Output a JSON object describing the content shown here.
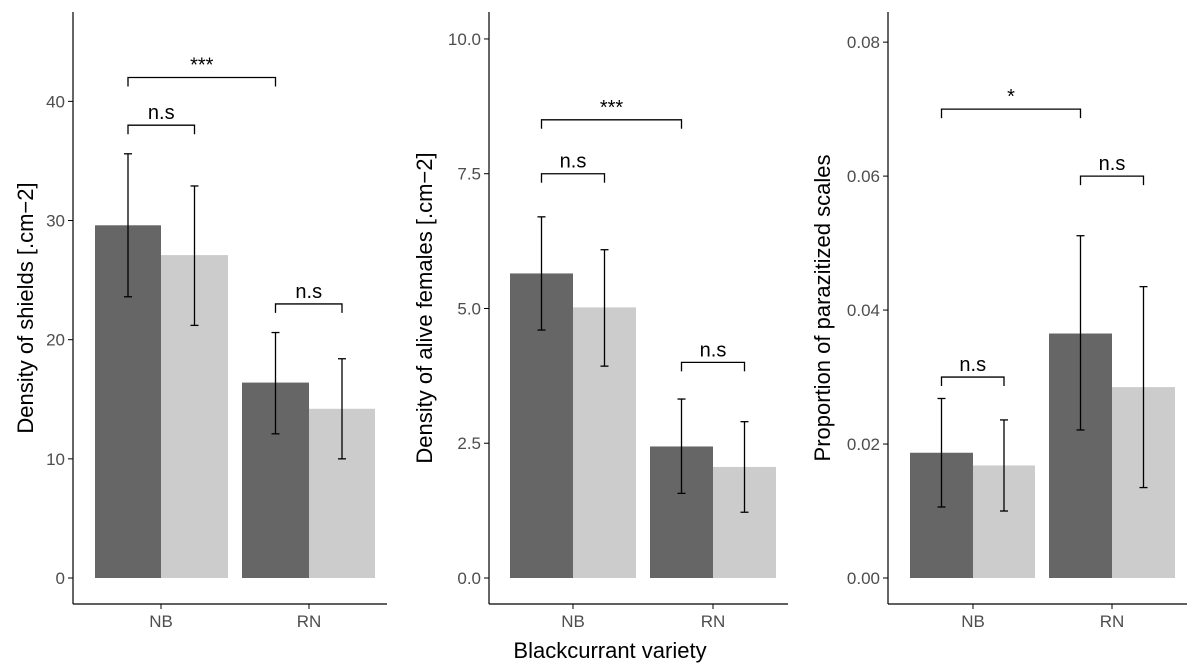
{
  "x_axis_title": "Blackcurrant variety",
  "colors": {
    "dark_bar": "#666666",
    "light_bar": "#cccccc",
    "axis": "#000000",
    "tick_text": "#4d4d4d"
  },
  "chart_data": [
    {
      "type": "bar",
      "ylabel": "Density of shields [.cm−2]",
      "ylim": [
        0,
        47.5
      ],
      "yticks": [
        0,
        10,
        20,
        30,
        40
      ],
      "ytick_labels": [
        "0",
        "10",
        "20",
        "30",
        "40"
      ],
      "categories": [
        "NB",
        "RN"
      ],
      "series": [
        {
          "values": [
            29.6,
            16.4
          ],
          "err_low": [
            23.6,
            12.1
          ],
          "err_high": [
            35.6,
            20.6
          ]
        },
        {
          "values": [
            27.1,
            14.2
          ],
          "err_low": [
            21.2,
            10.0
          ],
          "err_high": [
            32.9,
            18.4
          ]
        }
      ],
      "annotations": [
        {
          "label": "n.s",
          "from": "NB-1",
          "to": "NB-2",
          "level": 38.0
        },
        {
          "label": "n.s",
          "from": "RN-1",
          "to": "RN-2",
          "level": 23.0
        },
        {
          "label": "***",
          "from": "NB-1",
          "to": "RN-1",
          "level": 42.0
        }
      ]
    },
    {
      "type": "bar",
      "ylabel": "Density of alive females [.cm−2]",
      "ylim": [
        0,
        10.5
      ],
      "yticks": [
        0,
        2.5,
        5,
        7.5,
        10
      ],
      "ytick_labels": [
        "0.0",
        "2.5",
        "5.0",
        "7.5",
        "10.0"
      ],
      "categories": [
        "NB",
        "RN"
      ],
      "series": [
        {
          "values": [
            5.65,
            2.44
          ],
          "err_low": [
            4.6,
            1.57
          ],
          "err_high": [
            6.7,
            3.32
          ]
        },
        {
          "values": [
            5.02,
            2.06
          ],
          "err_low": [
            3.93,
            1.22
          ],
          "err_high": [
            6.09,
            2.9
          ]
        }
      ],
      "annotations": [
        {
          "label": "n.s",
          "from": "NB-1",
          "to": "NB-2",
          "level": 7.5
        },
        {
          "label": "n.s",
          "from": "RN-1",
          "to": "RN-2",
          "level": 4.0
        },
        {
          "label": "***",
          "from": "NB-1",
          "to": "RN-1",
          "level": 8.5
        }
      ]
    },
    {
      "type": "bar",
      "ylabel": "Proportion of parazitized scales",
      "ylim": [
        0,
        0.0845
      ],
      "yticks": [
        0,
        0.02,
        0.04,
        0.06,
        0.08
      ],
      "ytick_labels": [
        "0.00",
        "0.02",
        "0.04",
        "0.06",
        "0.08"
      ],
      "categories": [
        "NB",
        "RN"
      ],
      "series": [
        {
          "values": [
            0.0187,
            0.0365
          ],
          "err_low": [
            0.0106,
            0.0221
          ],
          "err_high": [
            0.0268,
            0.0511
          ]
        },
        {
          "values": [
            0.0168,
            0.0285
          ],
          "err_low": [
            0.01,
            0.0135
          ],
          "err_high": [
            0.0236,
            0.0435
          ]
        }
      ],
      "annotations": [
        {
          "label": "n.s",
          "from": "NB-1",
          "to": "NB-2",
          "level": 0.03
        },
        {
          "label": "n.s",
          "from": "RN-1",
          "to": "RN-2",
          "level": 0.06
        },
        {
          "label": "*",
          "from": "NB-1",
          "to": "RN-1",
          "level": 0.07
        }
      ]
    }
  ]
}
